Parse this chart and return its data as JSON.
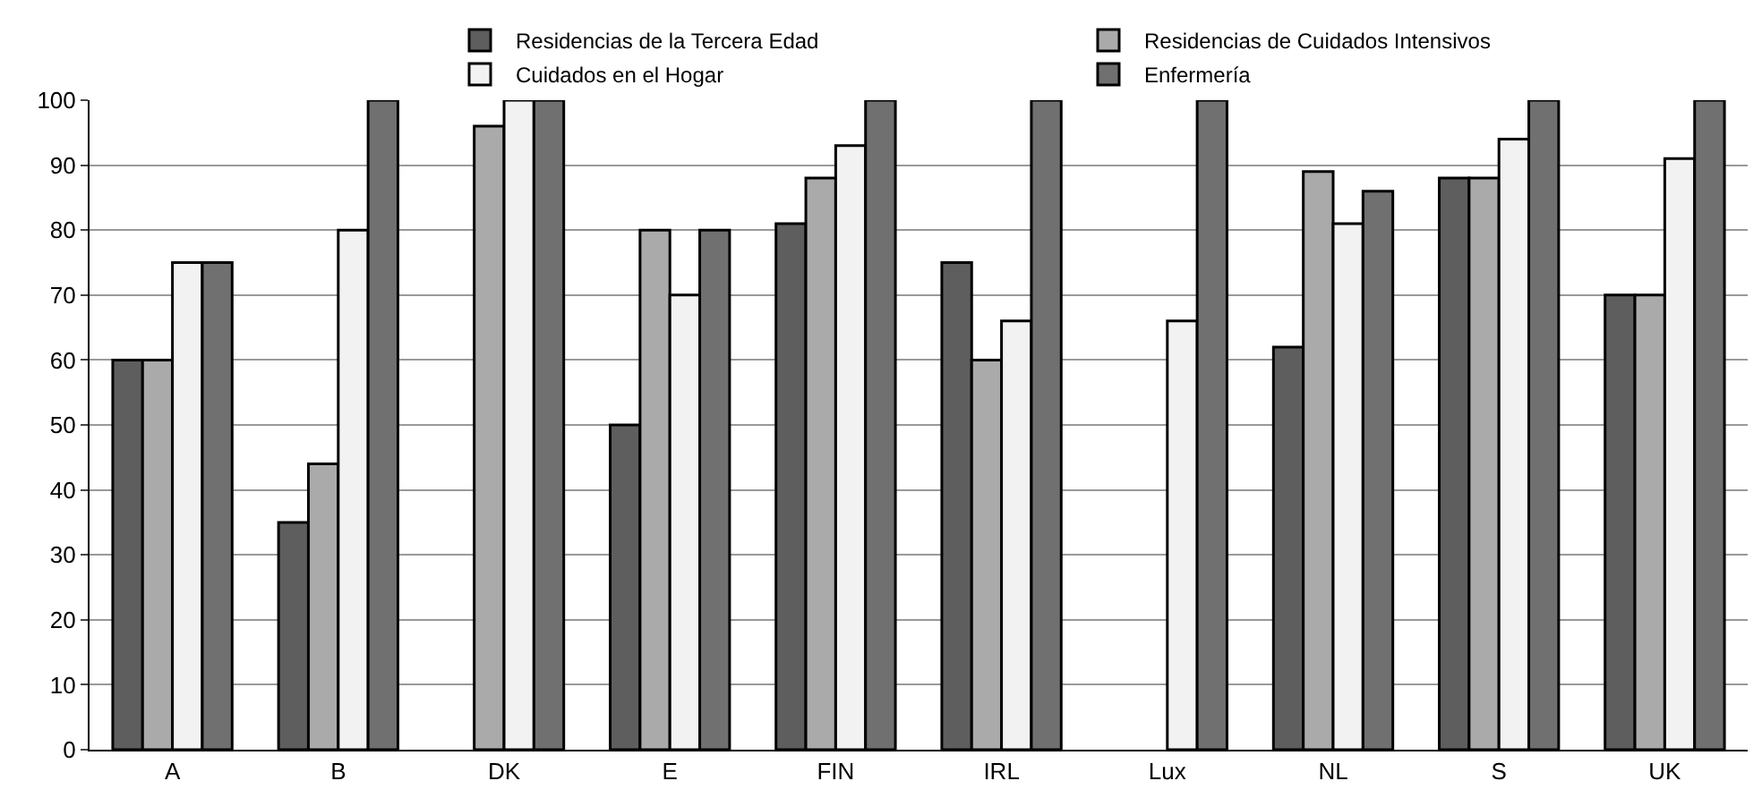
{
  "chart_data": {
    "type": "bar",
    "categories": [
      "A",
      "B",
      "DK",
      "E",
      "FIN",
      "IRL",
      "Lux",
      "NL",
      "S",
      "UK"
    ],
    "series": [
      {
        "name": "Residencias de la Tercera Edad",
        "color": "#5e5e5e",
        "values": [
          60,
          35,
          null,
          50,
          81,
          75,
          null,
          62,
          88,
          70
        ]
      },
      {
        "name": "Residencias de Cuidados Intensivos",
        "color": "#aaaaaa",
        "values": [
          60,
          44,
          96,
          80,
          88,
          60,
          null,
          89,
          88,
          70
        ]
      },
      {
        "name": "Cuidados en el Hogar",
        "color": "#f2f2f2",
        "values": [
          75,
          80,
          100,
          70,
          93,
          66,
          66,
          81,
          94,
          91
        ]
      },
      {
        "name": "Enfermería",
        "color": "#707070",
        "values": [
          75,
          100,
          100,
          80,
          100,
          100,
          100,
          86,
          100,
          100
        ]
      }
    ],
    "ylim": [
      0,
      100
    ],
    "yticks": [
      0,
      10,
      20,
      30,
      40,
      50,
      60,
      70,
      80,
      90,
      100
    ],
    "grid": "y",
    "legend": "top"
  }
}
